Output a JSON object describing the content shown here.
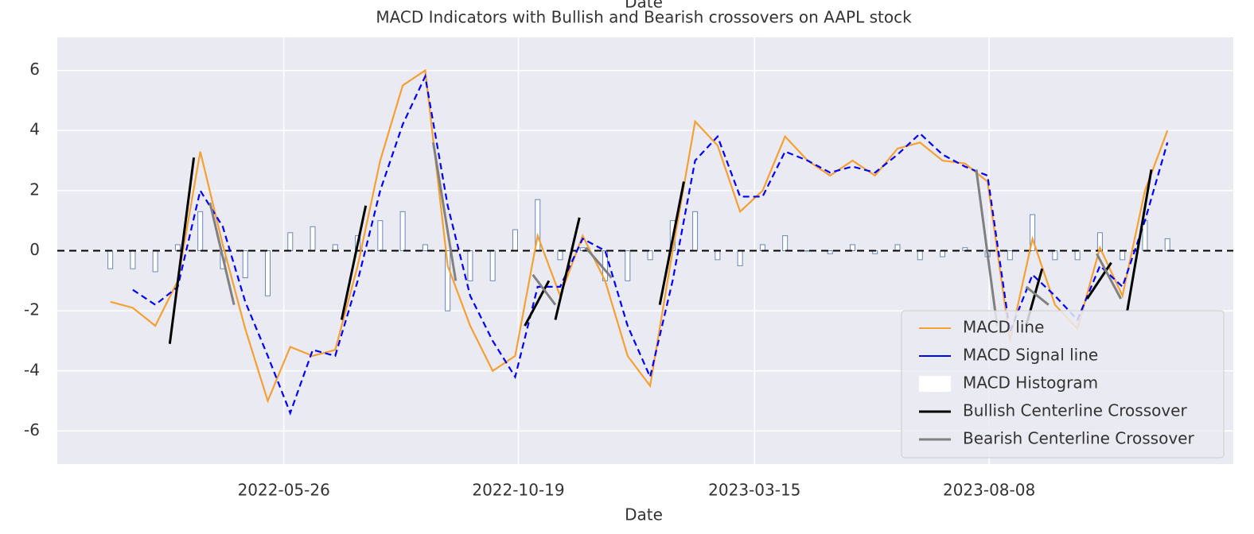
{
  "chart_data": {
    "type": "line",
    "title": "MACD Indicators with Bullish and Bearish crossovers on AAPL stock",
    "top_label": "Date",
    "xlabel": "Date",
    "x": [
      "2022-02-07",
      "2022-02-21",
      "2022-03-07",
      "2022-03-21",
      "2022-04-04",
      "2022-04-18",
      "2022-05-02",
      "2022-05-16",
      "2022-05-30",
      "2022-06-13",
      "2022-06-27",
      "2022-07-11",
      "2022-07-25",
      "2022-08-08",
      "2022-08-22",
      "2022-09-05",
      "2022-09-19",
      "2022-10-03",
      "2022-10-17",
      "2022-10-31",
      "2022-11-14",
      "2022-11-28",
      "2022-12-12",
      "2022-12-26",
      "2023-01-09",
      "2023-01-23",
      "2023-02-06",
      "2023-02-20",
      "2023-03-06",
      "2023-03-20",
      "2023-04-03",
      "2023-04-17",
      "2023-05-01",
      "2023-05-15",
      "2023-05-29",
      "2023-06-12",
      "2023-06-26",
      "2023-07-10",
      "2023-07-24",
      "2023-08-07",
      "2023-08-21",
      "2023-09-04",
      "2023-09-18",
      "2023-10-02",
      "2023-10-16",
      "2023-10-30",
      "2023-11-13",
      "2023-11-27"
    ],
    "series": [
      {
        "name": "MACD line",
        "color": "#f5a033",
        "kind": "line",
        "values": [
          -1.7,
          -1.9,
          -2.5,
          -1.0,
          3.3,
          0.2,
          -2.6,
          -5.0,
          -3.2,
          -3.5,
          -3.3,
          -0.5,
          3.0,
          5.5,
          6.0,
          -0.5,
          -2.5,
          -4.0,
          -3.5,
          0.5,
          -1.5,
          0.5,
          -1.0,
          -3.5,
          -4.5,
          0.0,
          4.3,
          3.5,
          1.3,
          2.0,
          3.8,
          3.0,
          2.5,
          3.0,
          2.5,
          3.4,
          3.6,
          3.0,
          2.9,
          2.3,
          -3.0,
          0.4,
          -1.8,
          -2.6,
          0.1,
          -1.5,
          2.0,
          4.0
        ]
      },
      {
        "name": "MACD Signal line",
        "color": "#0000ff",
        "kind": "dashed",
        "values": [
          null,
          -1.3,
          -1.8,
          -1.2,
          2.0,
          0.8,
          -1.7,
          -3.5,
          -5.4,
          -3.3,
          -3.5,
          -1.0,
          2.0,
          4.2,
          5.8,
          1.5,
          -1.5,
          -3.0,
          -4.2,
          -1.2,
          -1.2,
          0.4,
          0.0,
          -2.5,
          -4.2,
          -1.0,
          3.0,
          3.8,
          1.8,
          1.8,
          3.3,
          3.0,
          2.6,
          2.8,
          2.6,
          3.2,
          3.9,
          3.2,
          2.8,
          2.5,
          -2.7,
          -0.8,
          -1.5,
          -2.3,
          -0.5,
          -1.2,
          1.0,
          3.6
        ]
      },
      {
        "name": "MACD Histogram",
        "color": "#ffffff",
        "edgecolor": "#6a86b8",
        "kind": "bar",
        "values": [
          -0.6,
          -0.6,
          -0.7,
          0.2,
          1.3,
          -0.6,
          -0.9,
          -1.5,
          0.6,
          0.8,
          0.2,
          0.5,
          1.0,
          1.3,
          0.2,
          -2.0,
          -1.0,
          -1.0,
          0.7,
          1.7,
          -0.3,
          0.1,
          -1.0,
          -1.0,
          -0.3,
          1.0,
          1.3,
          -0.3,
          -0.5,
          0.2,
          0.5,
          0,
          -0.1,
          0.2,
          -0.1,
          0.2,
          -0.3,
          -0.2,
          0.1,
          -0.2,
          -0.3,
          1.2,
          -0.3,
          -0.3,
          0.6,
          -0.3,
          1.0,
          0.4
        ]
      }
    ],
    "crossovers": [
      {
        "name": "Bullish Centerline Crossover",
        "color": "#000000",
        "segments": [
          {
            "x": [
              "2022-03-16",
              "2022-03-31"
            ],
            "y": [
              -3.1,
              3.1
            ]
          },
          {
            "x": [
              "2022-07-01",
              "2022-07-16"
            ],
            "y": [
              -2.3,
              1.5
            ]
          },
          {
            "x": [
              "2022-10-23",
              "2022-11-07"
            ],
            "y": [
              -2.5,
              -1.0
            ]
          },
          {
            "x": [
              "2022-11-11",
              "2022-11-26"
            ],
            "y": [
              -2.3,
              1.1
            ]
          },
          {
            "x": [
              "2023-01-15",
              "2023-01-30"
            ],
            "y": [
              -1.8,
              2.3
            ]
          },
          {
            "x": [
              "2023-08-31",
              "2023-09-10"
            ],
            "y": [
              -2.5,
              -0.6
            ]
          },
          {
            "x": [
              "2023-10-08",
              "2023-10-23"
            ],
            "y": [
              -1.6,
              -0.4
            ]
          },
          {
            "x": [
              "2023-11-02",
              "2023-11-17"
            ],
            "y": [
              -2.0,
              2.7
            ]
          }
        ]
      },
      {
        "name": "Bearish Centerline Crossover",
        "color": "#808080",
        "segments": [
          {
            "x": [
              "2022-04-10",
              "2022-04-25"
            ],
            "y": [
              1.6,
              -1.8
            ]
          },
          {
            "x": [
              "2022-08-27",
              "2022-09-10"
            ],
            "y": [
              3.6,
              -1.0
            ]
          },
          {
            "x": [
              "2022-10-28",
              "2022-11-11"
            ],
            "y": [
              -0.8,
              -1.8
            ]
          },
          {
            "x": [
              "2022-11-30",
              "2022-12-16"
            ],
            "y": [
              0.1,
              -0.9
            ]
          },
          {
            "x": [
              "2023-07-31",
              "2023-08-13"
            ],
            "y": [
              2.7,
              -2.5
            ]
          },
          {
            "x": [
              "2023-08-31",
              "2023-09-14"
            ],
            "y": [
              -1.2,
              -1.8
            ]
          },
          {
            "x": [
              "2023-10-14",
              "2023-10-29"
            ],
            "y": [
              -0.1,
              -1.6
            ]
          }
        ]
      }
    ],
    "zero_line": 0,
    "xlim": [
      "2022-01-05",
      "2024-01-07"
    ],
    "xticks": [
      "2022-05-26",
      "2022-10-19",
      "2023-03-15",
      "2023-08-08"
    ],
    "ylim": [
      -7.1,
      7.1
    ],
    "yticks": [
      -6,
      -4,
      -2,
      0,
      2,
      4,
      6
    ],
    "grid": true,
    "legend": "lower right"
  }
}
